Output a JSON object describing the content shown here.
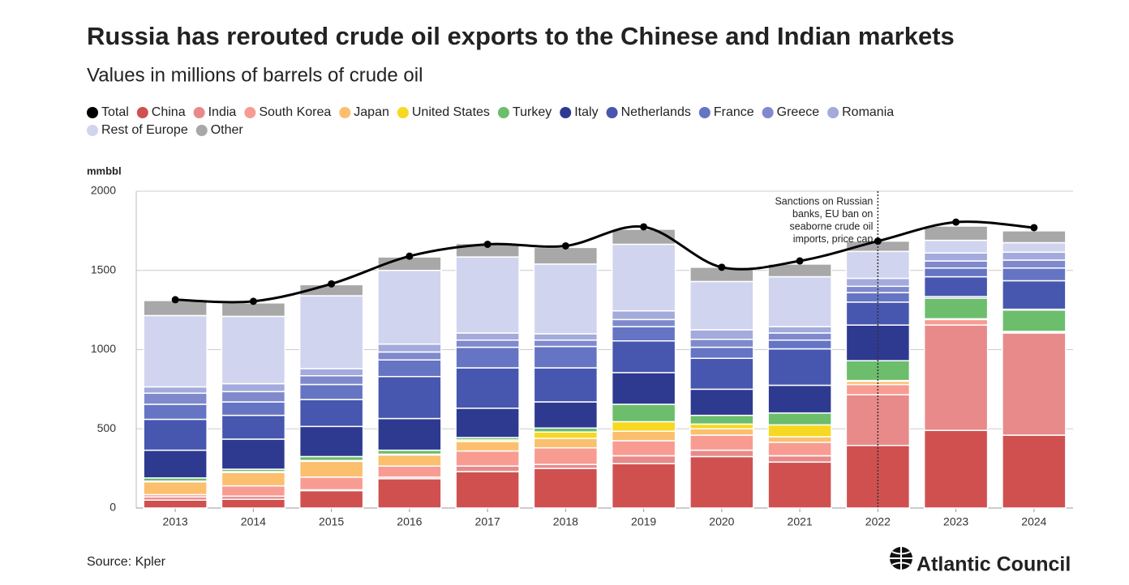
{
  "chart_data": {
    "type": "stacked-bar",
    "title": "Russia has rerouted crude oil exports to the Chinese and Indian markets",
    "subtitle": "Values in millions of barrels of crude oil",
    "y_label": "mmbbl",
    "source": "Source: Kpler",
    "brand": "Atlantic Council",
    "annotation": {
      "x": "2022",
      "text": [
        "Sanctions on Russian",
        "banks, EU ban on",
        "seaborne crude oil",
        "imports, price cap"
      ]
    },
    "categories": [
      "2013",
      "2014",
      "2015",
      "2016",
      "2017",
      "2018",
      "2019",
      "2020",
      "2021",
      "2022",
      "2023",
      "2024"
    ],
    "ylim": [
      0,
      2000
    ],
    "yticks": [
      0,
      500,
      1000,
      1500,
      2000
    ],
    "grid": true,
    "series": [
      {
        "name": "Total",
        "type": "line",
        "color": "#000000",
        "values": [
          1315,
          1305,
          1415,
          1590,
          1665,
          1655,
          1775,
          1520,
          1560,
          1685,
          1805,
          1770
        ]
      },
      {
        "name": "China",
        "color": "#d05050",
        "values": [
          50,
          55,
          110,
          185,
          230,
          250,
          280,
          325,
          290,
          395,
          490,
          460
        ]
      },
      {
        "name": "India",
        "color": "#e88a8a",
        "values": [
          20,
          20,
          5,
          10,
          35,
          25,
          50,
          40,
          40,
          320,
          665,
          645
        ]
      },
      {
        "name": "South Korea",
        "color": "#f89c92",
        "values": [
          15,
          65,
          80,
          70,
          95,
          105,
          95,
          95,
          85,
          65,
          35,
          5
        ]
      },
      {
        "name": "Japan",
        "color": "#fbbf6e",
        "values": [
          80,
          85,
          100,
          70,
          60,
          60,
          60,
          40,
          35,
          20,
          5,
          5
        ]
      },
      {
        "name": "United States",
        "color": "#f8d820",
        "values": [
          5,
          5,
          5,
          5,
          10,
          40,
          60,
          30,
          75,
          5,
          0,
          0
        ]
      },
      {
        "name": "Turkey",
        "color": "#6cbd6c",
        "values": [
          20,
          15,
          25,
          25,
          15,
          25,
          110,
          55,
          75,
          125,
          130,
          135
        ]
      },
      {
        "name": "Italy",
        "color": "#2e3990",
        "values": [
          175,
          190,
          190,
          200,
          185,
          165,
          200,
          165,
          175,
          225,
          10,
          5
        ]
      },
      {
        "name": "Netherlands",
        "color": "#4756ae",
        "values": [
          195,
          150,
          170,
          265,
          255,
          215,
          200,
          195,
          230,
          145,
          125,
          180
        ]
      },
      {
        "name": "France",
        "color": "#6674c4",
        "values": [
          95,
          85,
          95,
          105,
          130,
          135,
          90,
          70,
          55,
          60,
          55,
          80
        ]
      },
      {
        "name": "Greece",
        "color": "#7f89cc",
        "values": [
          70,
          65,
          55,
          50,
          45,
          40,
          45,
          50,
          45,
          40,
          45,
          50
        ]
      },
      {
        "name": "Romania",
        "color": "#a3aadc",
        "values": [
          40,
          50,
          45,
          50,
          45,
          40,
          55,
          60,
          40,
          50,
          50,
          50
        ]
      },
      {
        "name": "Rest of Europe",
        "color": "#d1d4ee",
        "values": [
          450,
          425,
          460,
          465,
          480,
          440,
          420,
          305,
          315,
          170,
          80,
          60
        ]
      },
      {
        "name": "Other",
        "color": "#a8a8a8",
        "values": [
          95,
          85,
          70,
          85,
          85,
          105,
          95,
          90,
          80,
          65,
          90,
          75
        ]
      }
    ]
  }
}
